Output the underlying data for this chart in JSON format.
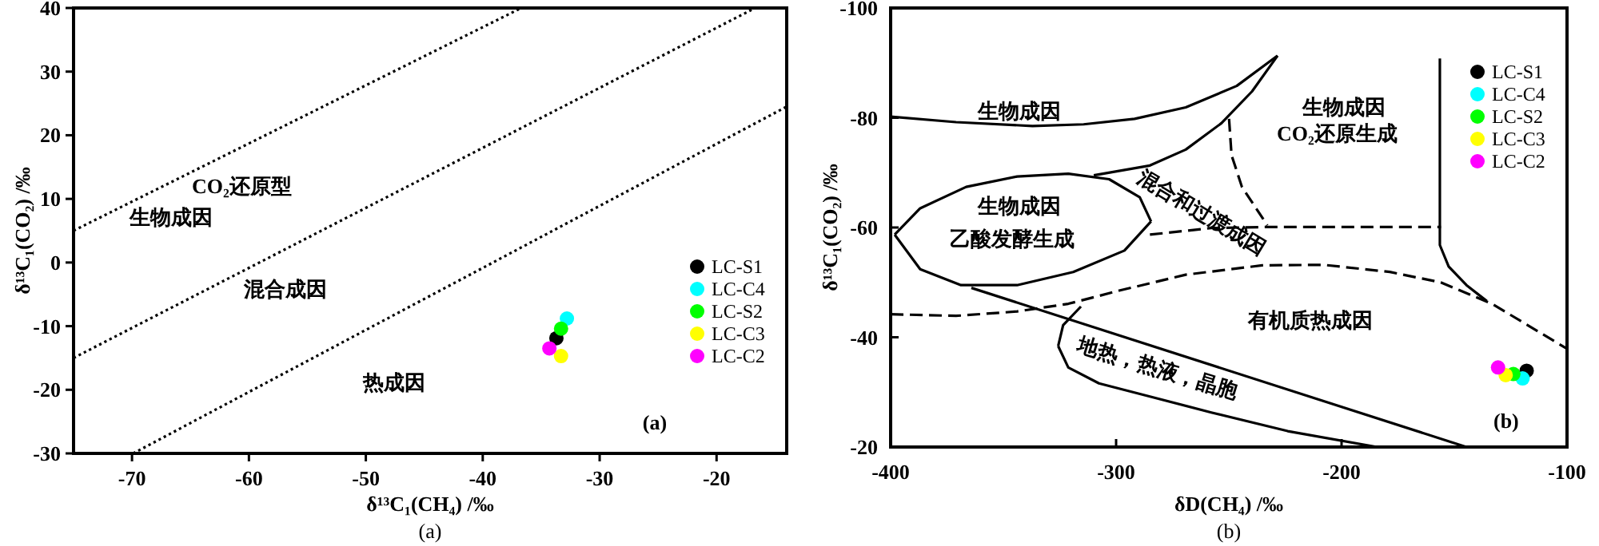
{
  "chart_data": [
    {
      "type": "scatter",
      "xlabel": "δ¹³C₁(CH₄) /‰",
      "ylabel": "δ¹³C₁(CO₂) /‰",
      "xlim": [
        -75,
        -14
      ],
      "ylim": [
        -30,
        40
      ],
      "xticks": [
        -70,
        -60,
        -50,
        -40,
        -30,
        -20
      ],
      "yticks": [
        -30,
        -20,
        -10,
        0,
        10,
        20,
        30,
        40
      ],
      "legend": "right",
      "series": [
        {
          "name": "LC-S1",
          "color": "#000000",
          "marker": "circle",
          "x": [
            -33.7
          ],
          "values": [
            -11.9
          ]
        },
        {
          "name": "LC-C4",
          "color": "#00ffff",
          "marker": "circle",
          "x": [
            -32.8
          ],
          "values": [
            -8.8
          ]
        },
        {
          "name": "LC-S2",
          "color": "#00ff00",
          "marker": "circle",
          "x": [
            -33.3
          ],
          "values": [
            -10.4
          ]
        },
        {
          "name": "LC-C3",
          "color": "#ffff00",
          "marker": "circle",
          "x": [
            -33.3
          ],
          "values": [
            -14.7
          ]
        },
        {
          "name": "LC-C2",
          "color": "#ff00ff",
          "marker": "circle",
          "x": [
            -34.3
          ],
          "values": [
            -13.5
          ]
        },
        {
          "type": "line",
          "line_style": "dotted",
          "color": "#000000",
          "x": [
            -75,
            -36.7
          ],
          "values": [
            5,
            40
          ]
        },
        {
          "type": "line",
          "line_style": "dotted",
          "color": "#000000",
          "x": [
            -75,
            -16.7
          ],
          "values": [
            -15,
            40
          ]
        },
        {
          "type": "line",
          "line_style": "dotted",
          "color": "#000000",
          "x": [
            -69.9,
            -14
          ],
          "values": [
            -30,
            24.5
          ]
        }
      ],
      "annotations": [
        "CO₂还原型",
        "生物成因",
        "混合成因",
        "热成因",
        "(a)",
        "(a)"
      ]
    },
    {
      "type": "scatter",
      "xlabel": "δD(CH₄) /‰",
      "ylabel": "δ¹³C₁(CO₂) /‰",
      "xlim": [
        -400,
        -100
      ],
      "ylim": [
        -20,
        -100
      ],
      "xticks": [
        -400,
        -300,
        -200,
        -100
      ],
      "yticks": [
        -100,
        -80,
        -60,
        -40,
        -20
      ],
      "legend": "top right",
      "series": [
        {
          "name": "LC-S1",
          "color": "#000000",
          "marker": "circle",
          "x": [
            -117.9
          ],
          "values": [
            -33.9
          ]
        },
        {
          "name": "LC-C4",
          "color": "#00ffff",
          "marker": "circle",
          "x": [
            -119.7
          ],
          "values": [
            -32.5
          ]
        },
        {
          "name": "LC-S2",
          "color": "#00ff00",
          "marker": "circle",
          "x": [
            -123.8
          ],
          "values": [
            -33.3
          ]
        },
        {
          "name": "LC-C3",
          "color": "#ffff00",
          "marker": "circle",
          "x": [
            -127.2
          ],
          "values": [
            -33.1
          ]
        },
        {
          "name": "LC-C2",
          "color": "#ff00ff",
          "marker": "circle",
          "x": [
            -130.6
          ],
          "values": [
            -34.5
          ]
        },
        {
          "type": "line",
          "line_style": "solid",
          "color": "#000000",
          "x": [
            -400,
            -371.0,
            -337.1,
            -314.4,
            -291.8,
            -269.1,
            -246.5,
            -228.4
          ],
          "values": [
            -80.2,
            -79.2,
            -78.5,
            -78.8,
            -79.8,
            -81.9,
            -85.8,
            -91.3
          ]
        },
        {
          "type": "line",
          "line_style": "solid",
          "color": "#000000",
          "x": [
            -228.4,
            -239.7,
            -253.3,
            -269.1,
            -285.0,
            -309.9
          ],
          "values": [
            -91.3,
            -84.8,
            -79.0,
            -74.2,
            -71.3,
            -69.5
          ]
        },
        {
          "type": "line",
          "line_style": "solid",
          "color": "#000000",
          "x": [
            -398.2,
            -386.9,
            -366.5,
            -343.9,
            -321.2,
            -303.1,
            -289.5,
            -284.5
          ],
          "values": [
            -58.7,
            -63.5,
            -67.4,
            -69.3,
            -69.8,
            -68.8,
            -65.5,
            -61.1
          ]
        },
        {
          "type": "line",
          "line_style": "solid",
          "color": "#000000",
          "x": [
            -398.2,
            -386.9,
            -368.8,
            -343.9,
            -319.0,
            -296.3,
            -284.5
          ],
          "values": [
            -58.7,
            -52.4,
            -49.5,
            -49.5,
            -51.9,
            -55.8,
            -61.1
          ]
        },
        {
          "type": "line",
          "line_style": "solid",
          "color": "#000000",
          "x": [
            -364.2,
            -144.6
          ],
          "values": [
            -49.0,
            -20.0
          ]
        },
        {
          "type": "line",
          "line_style": "solid",
          "color": "#000000",
          "x": [
            -315.6,
            -323.5,
            -325.7
          ],
          "values": [
            -45.6,
            -42.2,
            -38.4
          ]
        },
        {
          "type": "line",
          "line_style": "solid",
          "color": "#000000",
          "x": [
            -325.7,
            -321.2,
            -307.6,
            -285.0,
            -257.8,
            -223.9,
            -184.2
          ],
          "values": [
            -38.4,
            -34.5,
            -31.6,
            -29.2,
            -26.3,
            -22.9,
            -20.0
          ]
        },
        {
          "type": "line",
          "line_style": "dashed",
          "color": "#000000",
          "x": [
            -400,
            -371.0,
            -343.9,
            -321.2,
            -298.6,
            -269.1,
            -235.2,
            -208.0,
            -178.6,
            -156.0,
            -133.3,
            -100
          ],
          "values": [
            -44.2,
            -43.9,
            -44.7,
            -46.1,
            -48.5,
            -51.4,
            -53.1,
            -53.2,
            -51.9,
            -50.0,
            -46.1,
            -37.9
          ]
        },
        {
          "type": "line",
          "line_style": "dashed",
          "color": "#000000",
          "x": [
            -285.0,
            -257.8,
            -232.9,
            -155.9
          ],
          "values": [
            -58.7,
            -59.9,
            -60.1,
            -60.1
          ]
        },
        {
          "type": "line",
          "line_style": "dashed",
          "color": "#000000",
          "x": [
            -249.9,
            -248.8,
            -244.2,
            -232.9
          ],
          "values": [
            -79.8,
            -73.2,
            -67.4,
            -60.4
          ]
        },
        {
          "type": "line",
          "line_style": "solid",
          "color": "#000000",
          "x": [
            -156.4,
            -156.4,
            -152.5,
            -144.6,
            -135.6
          ],
          "values": [
            -90.8,
            -56.8,
            -52.9,
            -49.5,
            -46.6
          ]
        }
      ],
      "annotations": [
        "生物成因",
        "生物成因",
        "乙酸发酵生成",
        "生物成因",
        "CO₂还原生成",
        "混合和过渡成因",
        "有机质热成因",
        "地热，热液，晶胞",
        "(b)",
        "(b)"
      ]
    }
  ]
}
